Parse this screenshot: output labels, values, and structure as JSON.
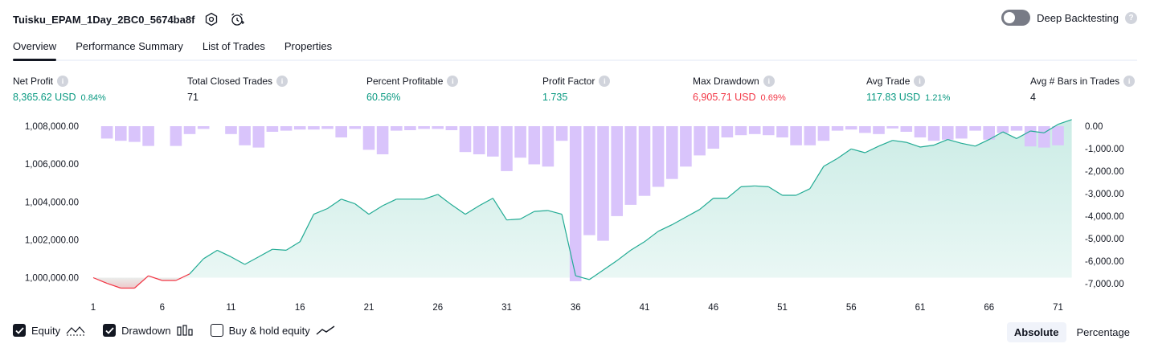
{
  "header": {
    "strategy_name": "Tuisku_EPAM_1Day_2BC0_5674ba8f",
    "settings_icon": "hexagon-settings-icon",
    "alert_icon": "add-alert-clock-icon",
    "deep_backtesting_label": "Deep Backtesting",
    "deep_backtesting_enabled": false,
    "help_glyph": "?"
  },
  "tabs": [
    {
      "label": "Overview",
      "active": true
    },
    {
      "label": "Performance Summary",
      "active": false
    },
    {
      "label": "List of Trades",
      "active": false
    },
    {
      "label": "Properties",
      "active": false
    }
  ],
  "metrics": {
    "net_profit": {
      "label": "Net Profit",
      "value": "8,365.62 USD",
      "pct": "0.84%"
    },
    "total_closed_trades": {
      "label": "Total Closed Trades",
      "value": "71"
    },
    "percent_profitable": {
      "label": "Percent Profitable",
      "value": "60.56%"
    },
    "profit_factor": {
      "label": "Profit Factor",
      "value": "1.735"
    },
    "max_drawdown": {
      "label": "Max Drawdown",
      "value": "6,905.71 USD",
      "pct": "0.69%"
    },
    "avg_trade": {
      "label": "Avg Trade",
      "value": "117.83 USD",
      "pct": "1.21%"
    },
    "avg_bars": {
      "label": "Avg # Bars in Trades",
      "value": "4"
    }
  },
  "colors": {
    "equity_line": "#22ab94",
    "equity_fill": "#c8ebe4",
    "equity_negative": "#f23645",
    "drawdown_bar": "#d9c4fb",
    "axis_text": "#131722",
    "profit_green": "#089981",
    "loss_red": "#f23645"
  },
  "legend": {
    "equity_label": "Equity",
    "equity_checked": true,
    "drawdown_label": "Drawdown",
    "drawdown_checked": true,
    "buyhold_label": "Buy & hold equity",
    "buyhold_checked": false
  },
  "view_mode": {
    "options": [
      "Absolute",
      "Percentage"
    ],
    "selected": "Absolute"
  },
  "chart_data": {
    "type": "line",
    "x_ticks": [
      1,
      6,
      11,
      16,
      21,
      26,
      31,
      36,
      41,
      46,
      51,
      56,
      61,
      66,
      71
    ],
    "left_axis": {
      "ticks": [
        "1,008,000.00",
        "1,006,000.00",
        "1,004,000.00",
        "1,002,000.00",
        "1,000,000.00"
      ],
      "tick_values": [
        1008000,
        1006000,
        1004000,
        1002000,
        1000000
      ],
      "range": [
        999300,
        1008300
      ]
    },
    "right_axis": {
      "ticks": [
        "0.00",
        "-1,000.00",
        "-2,000.00",
        "-3,000.00",
        "-4,000.00",
        "-5,000.00",
        "-6,000.00",
        "-7,000.00"
      ],
      "tick_values": [
        0,
        -1000,
        -2000,
        -3000,
        -4000,
        -5000,
        -6000,
        -7000
      ],
      "range": [
        -7330,
        250
      ]
    },
    "baseline": 1000000,
    "series": [
      {
        "name": "Equity",
        "axis": "left",
        "x": [
          1,
          2,
          3,
          4,
          5,
          6,
          7,
          8,
          9,
          10,
          11,
          12,
          13,
          14,
          15,
          16,
          17,
          18,
          19,
          20,
          21,
          22,
          23,
          24,
          25,
          26,
          27,
          28,
          29,
          30,
          31,
          32,
          33,
          34,
          35,
          36,
          37,
          38,
          39,
          40,
          41,
          42,
          43,
          44,
          45,
          46,
          47,
          48,
          49,
          50,
          51,
          52,
          53,
          54,
          55,
          56,
          57,
          58,
          59,
          60,
          61,
          62,
          63,
          64,
          65,
          66,
          67,
          68,
          69,
          70,
          71,
          72
        ],
        "values": [
          1000000,
          999700,
          999450,
          999450,
          1000100,
          999850,
          999850,
          1000200,
          1001000,
          1001450,
          1001100,
          1000700,
          1001100,
          1001500,
          1001450,
          1001900,
          1003350,
          1003650,
          1004150,
          1003900,
          1003350,
          1003800,
          1004150,
          1004150,
          1004150,
          1004400,
          1003850,
          1003350,
          1003800,
          1004200,
          1003050,
          1003100,
          1003500,
          1003550,
          1003350,
          1000100,
          999900,
          1000400,
          1000900,
          1001450,
          1001900,
          1002450,
          1002800,
          1003200,
          1003600,
          1004200,
          1004200,
          1004800,
          1004850,
          1004800,
          1004350,
          1004350,
          1004700,
          1005880,
          1006300,
          1006800,
          1006600,
          1006950,
          1007250,
          1007150,
          1006900,
          1007000,
          1007300,
          1007100,
          1006950,
          1007300,
          1007700,
          1007350,
          1007750,
          1007650,
          1008100,
          1008350
        ]
      },
      {
        "name": "Drawdown",
        "axis": "right",
        "x": [
          1,
          2,
          3,
          4,
          5,
          6,
          7,
          8,
          9,
          10,
          11,
          12,
          13,
          14,
          15,
          16,
          17,
          18,
          19,
          20,
          21,
          22,
          23,
          24,
          25,
          26,
          27,
          28,
          29,
          30,
          31,
          32,
          33,
          34,
          35,
          36,
          37,
          38,
          39,
          40,
          41,
          42,
          43,
          44,
          45,
          46,
          47,
          48,
          49,
          50,
          51,
          52,
          53,
          54,
          55,
          56,
          57,
          58,
          59,
          60,
          61,
          62,
          63,
          64,
          65,
          66,
          67,
          68,
          69,
          70,
          71,
          72
        ],
        "values": [
          0,
          -550,
          -650,
          -700,
          -880,
          0,
          -880,
          -350,
          -120,
          0,
          -350,
          -850,
          -950,
          -250,
          -200,
          -150,
          -150,
          -120,
          -500,
          -120,
          -1050,
          -1250,
          -200,
          -180,
          -120,
          -120,
          -180,
          -1150,
          -1250,
          -1350,
          -2000,
          -1400,
          -1700,
          -1800,
          -650,
          -6900,
          -4850,
          -5100,
          -4000,
          -3500,
          -3100,
          -2700,
          -2350,
          -1800,
          -1300,
          -1000,
          -500,
          -400,
          -350,
          -400,
          -500,
          -850,
          -850,
          -650,
          -200,
          -150,
          -300,
          -350,
          -100,
          -250,
          -500,
          -650,
          -600,
          -550,
          -200,
          -600,
          -300,
          -200,
          -900,
          -950,
          -850,
          0
        ]
      }
    ]
  }
}
